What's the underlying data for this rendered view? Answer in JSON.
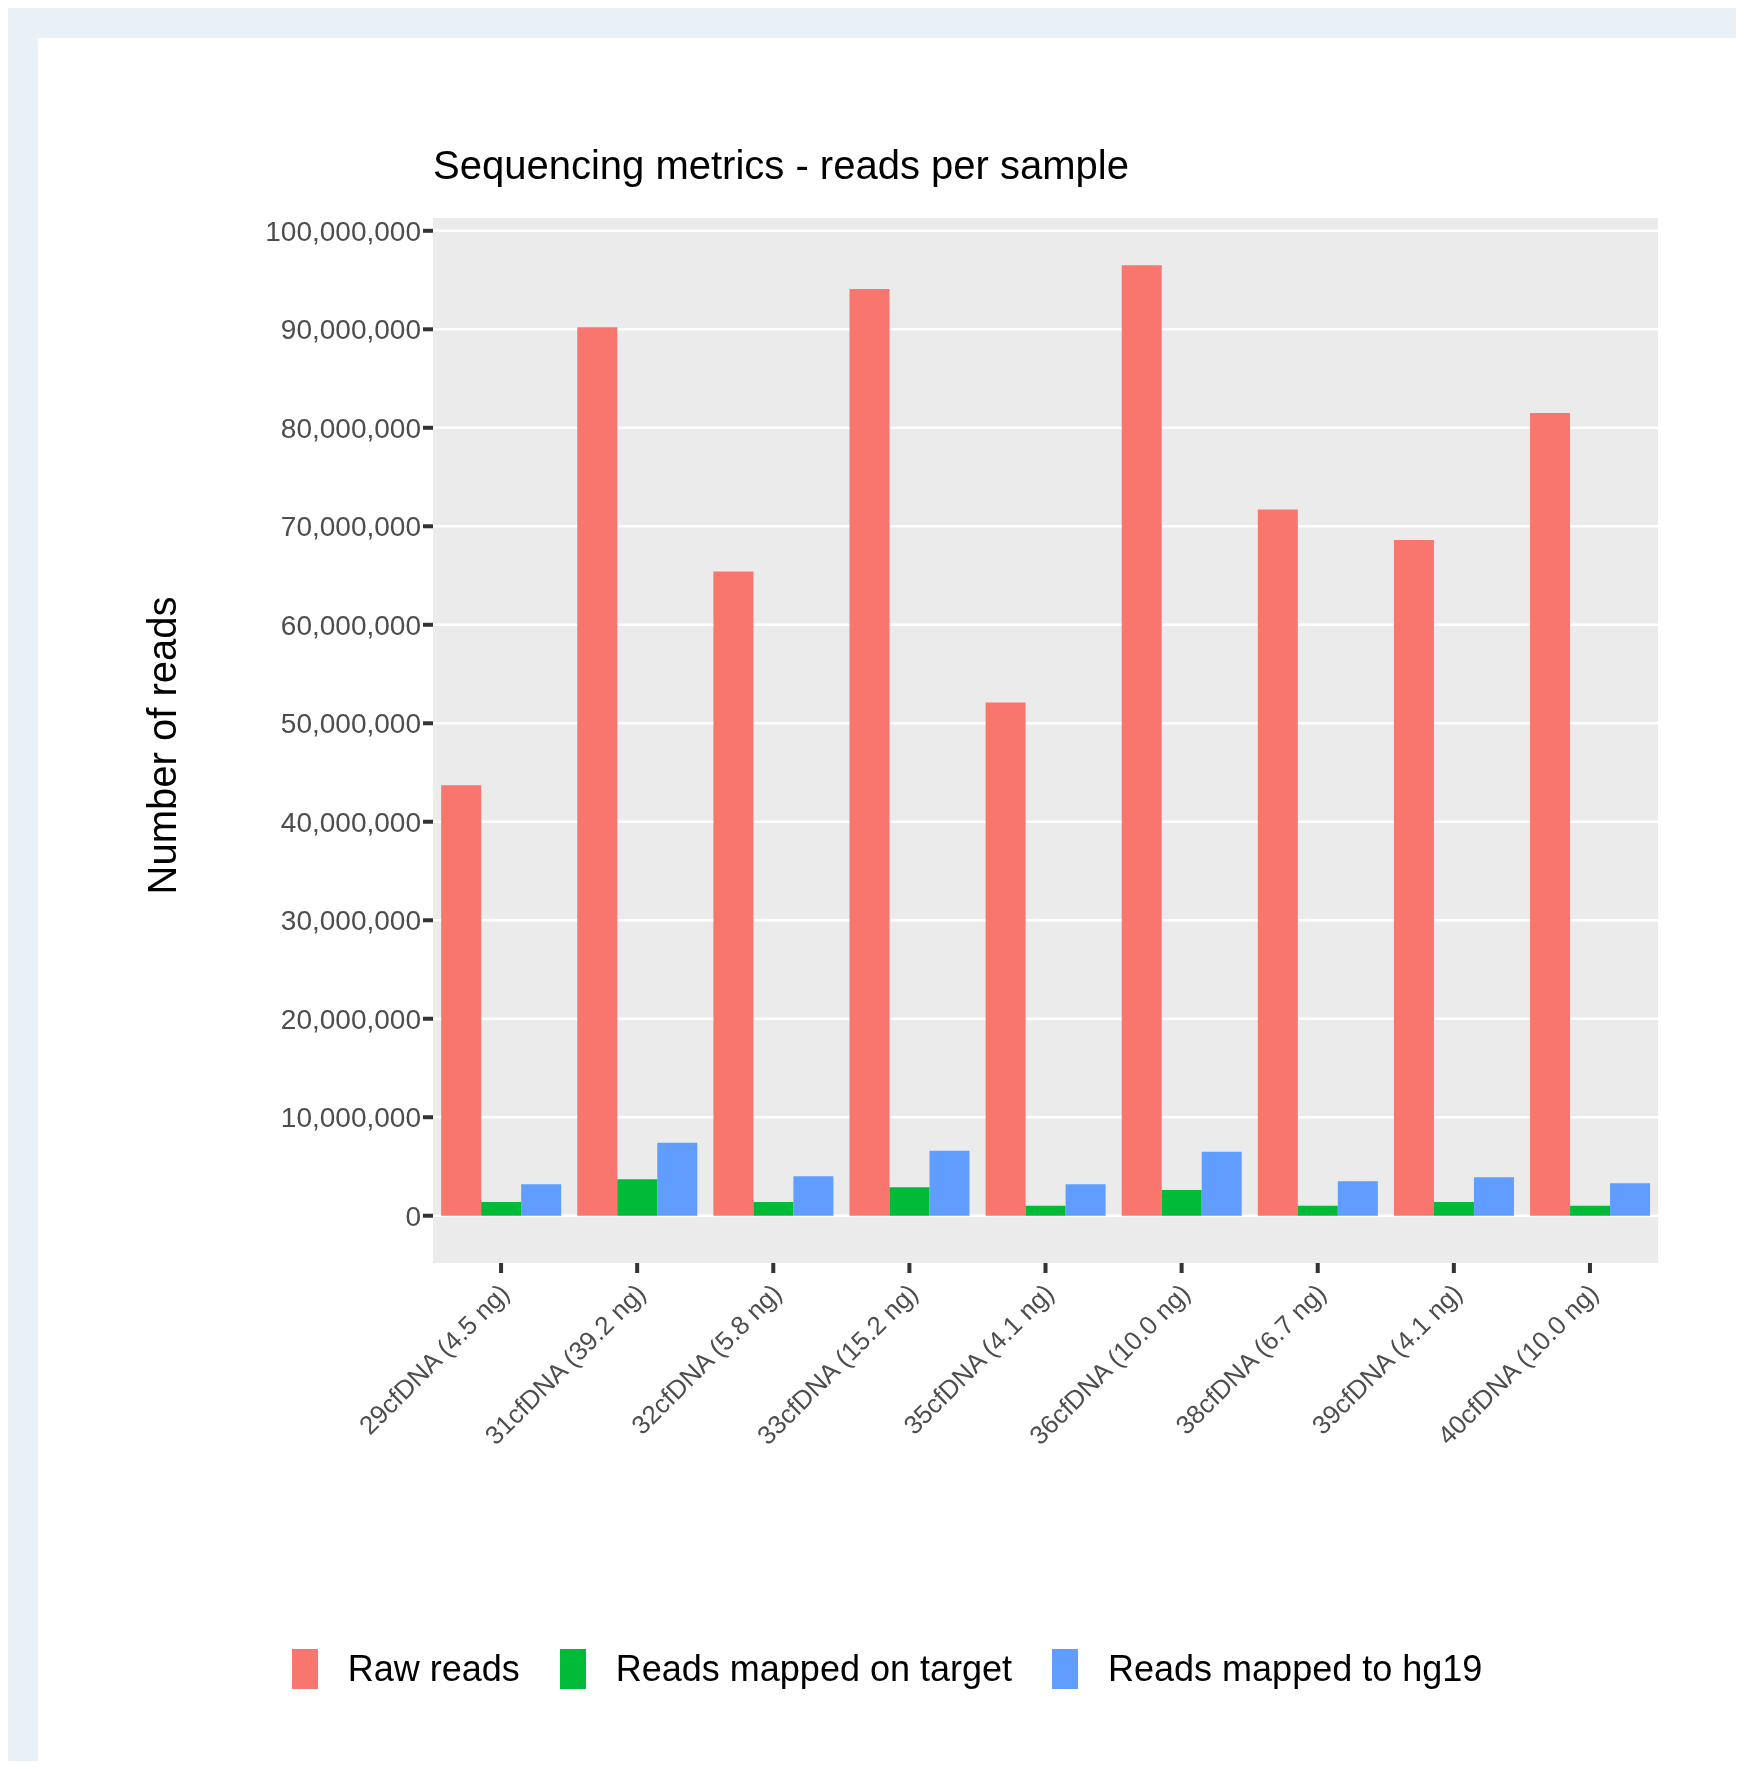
{
  "chart_data": {
    "type": "bar",
    "title": "Sequencing metrics - reads per sample",
    "ylabel": "Number of reads",
    "categories": [
      "29cfDNA (4.5 ng)",
      "31cfDNA (39.2 ng)",
      "32cfDNA (5.8 ng)",
      "33cfDNA (15.2 ng)",
      "35cfDNA (4.1 ng)",
      "36cfDNA (10.0 ng)",
      "38cfDNA (6.7 ng)",
      "39cfDNA (4.1 ng)",
      "40cfDNA (10.0 ng)"
    ],
    "series": [
      {
        "name": "Raw reads",
        "color": "#f8766d",
        "values": [
          43700000,
          90200000,
          65400000,
          94100000,
          52100000,
          96500000,
          71700000,
          68600000,
          81500000
        ]
      },
      {
        "name": "Reads mapped on target",
        "color": "#00ba38",
        "values": [
          1400000,
          3700000,
          1400000,
          2900000,
          1000000,
          2600000,
          1000000,
          1400000,
          1000000
        ]
      },
      {
        "name": "Reads mapped to hg19",
        "color": "#619cff",
        "values": [
          3200000,
          7400000,
          4000000,
          6600000,
          3200000,
          6500000,
          3500000,
          3900000,
          3300000
        ]
      }
    ],
    "ylim": [
      -4800000,
      101300000
    ],
    "yticks": [
      {
        "value": 0,
        "label": "0"
      },
      {
        "value": 10000000,
        "label": "10,000,000"
      },
      {
        "value": 20000000,
        "label": "20,000,000"
      },
      {
        "value": 30000000,
        "label": "30,000,000"
      },
      {
        "value": 40000000,
        "label": "40,000,000"
      },
      {
        "value": 50000000,
        "label": "50,000,000"
      },
      {
        "value": 60000000,
        "label": "60,000,000"
      },
      {
        "value": 70000000,
        "label": "70,000,000"
      },
      {
        "value": 80000000,
        "label": "80,000,000"
      },
      {
        "value": 90000000,
        "label": "90,000,000"
      },
      {
        "value": 100000000,
        "label": "100,000,000"
      }
    ],
    "grid": "y",
    "legend": "bottom"
  }
}
